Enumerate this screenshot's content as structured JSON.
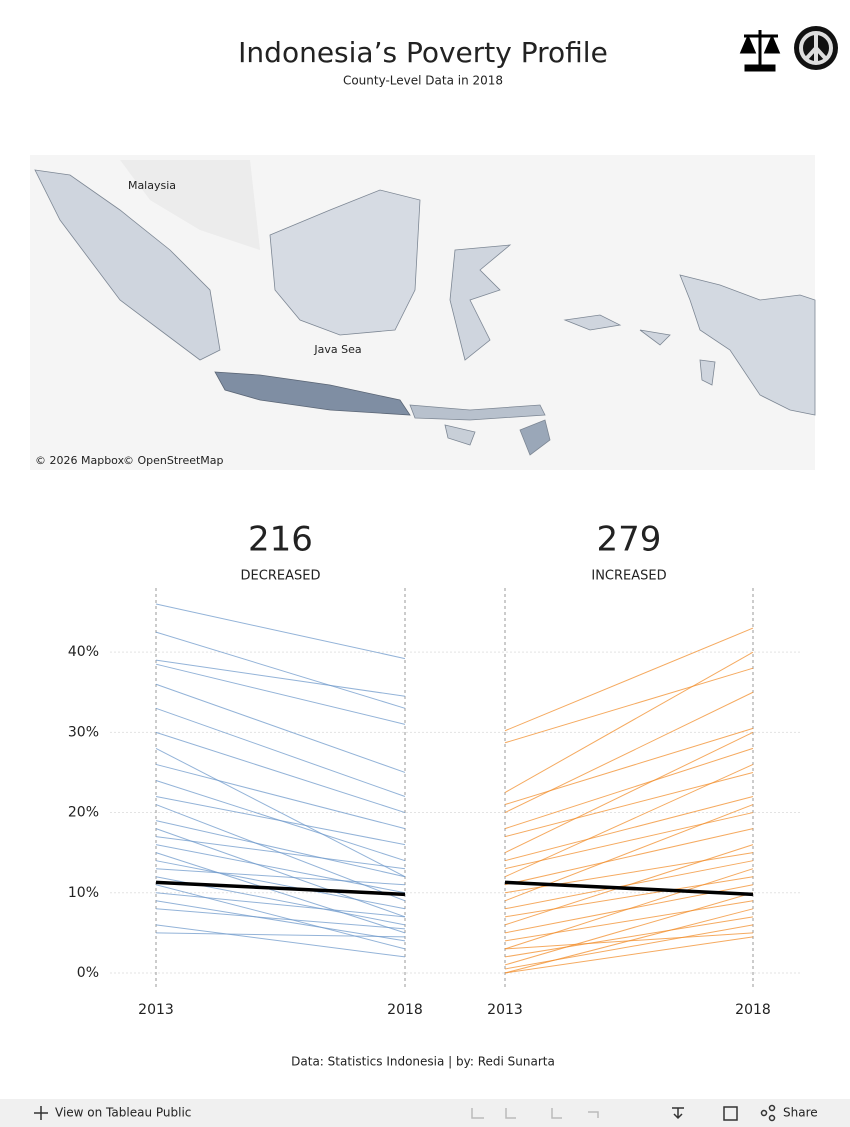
{
  "header": {
    "title": "Indonesia’s Poverty Profile",
    "subtitle": "County-Level Data in 2018"
  },
  "map": {
    "labels": [
      "Malaysia",
      "Java Sea"
    ],
    "attribution": [
      "© 2026 Mapbox",
      "© OpenStreetMap"
    ]
  },
  "chart_data": [
    {
      "type": "slope",
      "count": 216,
      "label": "DECREASED",
      "color": "#6f9acb",
      "categories": [
        "2013",
        "2018"
      ],
      "ylim": [
        -2,
        48
      ],
      "yticks": [
        {
          "value": 0,
          "label": "0%"
        },
        {
          "value": 10,
          "label": "10%"
        },
        {
          "value": 20,
          "label": "20%"
        },
        {
          "value": 30,
          "label": "30%"
        },
        {
          "value": 40,
          "label": "40%"
        }
      ],
      "grid": true,
      "lines": [
        [
          46,
          39.2
        ],
        [
          42.5,
          33
        ],
        [
          39,
          34.5
        ],
        [
          38.5,
          31
        ],
        [
          36,
          25
        ],
        [
          33,
          22
        ],
        [
          30,
          20
        ],
        [
          28,
          12
        ],
        [
          26,
          18
        ],
        [
          24,
          14
        ],
        [
          22,
          16
        ],
        [
          21,
          9
        ],
        [
          19,
          12
        ],
        [
          18,
          7
        ],
        [
          17,
          13
        ],
        [
          16,
          10
        ],
        [
          15,
          5
        ],
        [
          14,
          8
        ],
        [
          13,
          11
        ],
        [
          12,
          6
        ],
        [
          11,
          3
        ],
        [
          10,
          7
        ],
        [
          9,
          4
        ],
        [
          8,
          5.5
        ],
        [
          6,
          2
        ],
        [
          5,
          4.5
        ]
      ],
      "average": [
        11.3,
        9.8
      ],
      "average_color": "#000000"
    },
    {
      "type": "slope",
      "count": 279,
      "label": "INCREASED",
      "color": "#f28e2b",
      "categories": [
        "2013",
        "2018"
      ],
      "ylim": [
        -2,
        48
      ],
      "lines": [
        [
          30.2,
          43
        ],
        [
          28.7,
          38
        ],
        [
          22.5,
          40
        ],
        [
          21,
          30.5
        ],
        [
          20,
          35
        ],
        [
          18,
          28
        ],
        [
          17,
          25
        ],
        [
          15,
          30
        ],
        [
          14,
          22
        ],
        [
          13,
          20
        ],
        [
          12,
          26
        ],
        [
          11,
          18
        ],
        [
          10,
          15
        ],
        [
          9,
          21
        ],
        [
          8,
          14
        ],
        [
          7,
          12
        ],
        [
          6,
          16
        ],
        [
          5,
          11
        ],
        [
          4,
          9
        ],
        [
          3,
          13
        ],
        [
          2,
          7
        ],
        [
          1,
          10
        ],
        [
          0,
          8
        ],
        [
          0,
          4.5
        ],
        [
          0.5,
          6
        ],
        [
          3,
          5
        ]
      ],
      "average": [
        11.3,
        9.8
      ],
      "average_color": "#000000"
    }
  ],
  "footer": "Data: Statistics Indonesia | by: Redi Sunarta",
  "toolbar": {
    "left": "View on Tableau Public",
    "right": "Share"
  }
}
